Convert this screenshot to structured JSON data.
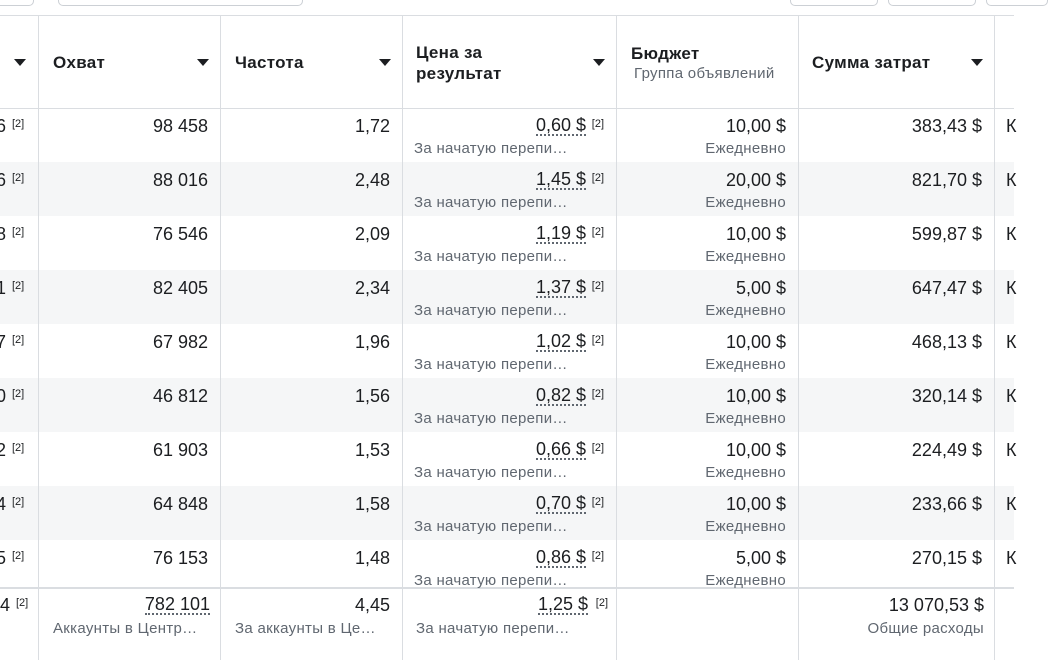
{
  "header": {
    "partial": "",
    "columns": [
      {
        "label": "Охват"
      },
      {
        "label": "Частота"
      },
      {
        "label": "Цена за результат"
      },
      {
        "label": "Бюджет",
        "sub": "Группа объявлений"
      },
      {
        "label": "Сумма затрат"
      }
    ]
  },
  "rows": [
    {
      "partial": "6",
      "partial_sup": "[2]",
      "reach": "98 458",
      "frequency": "1,72",
      "cost": "0,60 $",
      "cost_sup": "[2]",
      "cost_note": "За начатую перепи…",
      "budget": "10,00 $",
      "budget_note": "Ежедневно",
      "spend": "383,43 $",
      "next": "К"
    },
    {
      "partial": "6",
      "partial_sup": "[2]",
      "reach": "88 016",
      "frequency": "2,48",
      "cost": "1,45 $",
      "cost_sup": "[2]",
      "cost_note": "За начатую перепи…",
      "budget": "20,00 $",
      "budget_note": "Ежедневно",
      "spend": "821,70 $",
      "next": "К"
    },
    {
      "partial": "8",
      "partial_sup": "[2]",
      "reach": "76 546",
      "frequency": "2,09",
      "cost": "1,19 $",
      "cost_sup": "[2]",
      "cost_note": "За начатую перепи…",
      "budget": "10,00 $",
      "budget_note": "Ежедневно",
      "spend": "599,87 $",
      "next": "К"
    },
    {
      "partial": "1",
      "partial_sup": "[2]",
      "reach": "82 405",
      "frequency": "2,34",
      "cost": "1,37 $",
      "cost_sup": "[2]",
      "cost_note": "За начатую перепи…",
      "budget": "5,00 $",
      "budget_note": "Ежедневно",
      "spend": "647,47 $",
      "next": "К"
    },
    {
      "partial": "7",
      "partial_sup": "[2]",
      "reach": "67 982",
      "frequency": "1,96",
      "cost": "1,02 $",
      "cost_sup": "[2]",
      "cost_note": "За начатую перепи…",
      "budget": "10,00 $",
      "budget_note": "Ежедневно",
      "spend": "468,13 $",
      "next": "К"
    },
    {
      "partial": "0",
      "partial_sup": "[2]",
      "reach": "46 812",
      "frequency": "1,56",
      "cost": "0,82 $",
      "cost_sup": "[2]",
      "cost_note": "За начатую перепи…",
      "budget": "10,00 $",
      "budget_note": "Ежедневно",
      "spend": "320,14 $",
      "next": "К"
    },
    {
      "partial": "2",
      "partial_sup": "[2]",
      "reach": "61 903",
      "frequency": "1,53",
      "cost": "0,66 $",
      "cost_sup": "[2]",
      "cost_note": "За начатую перепи…",
      "budget": "10,00 $",
      "budget_note": "Ежедневно",
      "spend": "224,49 $",
      "next": "К"
    },
    {
      "partial": "4",
      "partial_sup": "[2]",
      "reach": "64 848",
      "frequency": "1,58",
      "cost": "0,70 $",
      "cost_sup": "[2]",
      "cost_note": "За начатую перепи…",
      "budget": "10,00 $",
      "budget_note": "Ежедневно",
      "spend": "233,66 $",
      "next": "К"
    },
    {
      "partial": "5",
      "partial_sup": "[2]",
      "reach": "76 153",
      "frequency": "1,48",
      "cost": "0,86 $",
      "cost_sup": "[2]",
      "cost_note": "За начатую перепи…",
      "budget": "5,00 $",
      "budget_note": "Ежедневно",
      "spend": "270,15 $",
      "next": "К"
    }
  ],
  "footer": {
    "partial": "4",
    "partial_sup": "[2]",
    "reach": "782 101",
    "reach_note": "Аккаунты в Центр…",
    "frequency": "4,45",
    "frequency_note": "За аккаунты в Це…",
    "cost": "1,25 $",
    "cost_sup": "[2]",
    "cost_note": "За начатую перепи…",
    "spend": "13 070,53 $",
    "spend_note": "Общие расходы"
  }
}
